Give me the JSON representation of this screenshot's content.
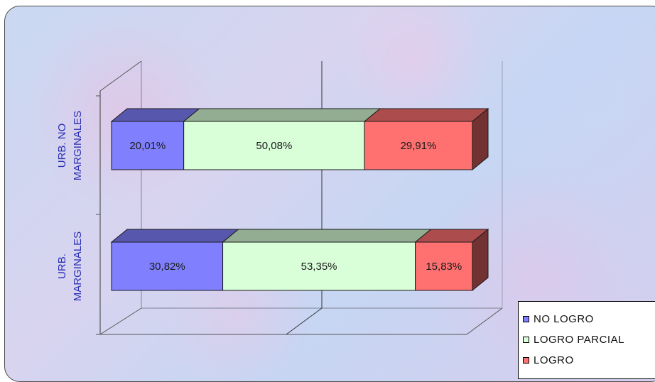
{
  "chart_data": {
    "type": "bar",
    "orientation": "horizontal",
    "stacked": "100%",
    "three_d": true,
    "categories": [
      "URB. NO MARGINALES",
      "URB. MARGINALES"
    ],
    "category_label_lines": [
      [
        "URB. NO",
        "MARGINALES"
      ],
      [
        "URB.",
        "MARGINALES"
      ]
    ],
    "series": [
      {
        "name": "NO LOGRO",
        "color": "#8080ff",
        "values": [
          20.01,
          30.82
        ],
        "labels": [
          "20,01%",
          "30,82%"
        ]
      },
      {
        "name": "LOGRO PARCIAL",
        "color": "#d8ffd8",
        "values": [
          50.08,
          53.35
        ],
        "labels": [
          "50,08%",
          "53,35%"
        ]
      },
      {
        "name": "LOGRO",
        "color": "#ff7070",
        "values": [
          29.91,
          15.83
        ],
        "labels": [
          "29,91%",
          "15,83%"
        ]
      }
    ],
    "xlim": [
      0,
      100
    ],
    "grid": true,
    "legend": "bottom-right"
  }
}
